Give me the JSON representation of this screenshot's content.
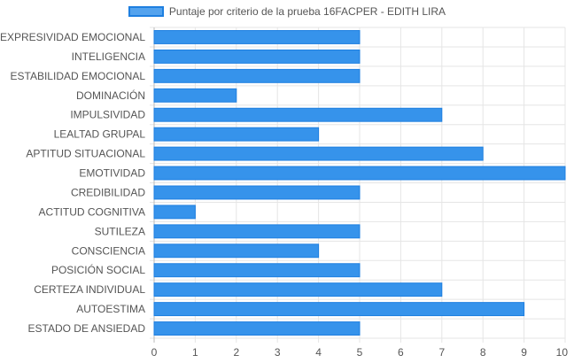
{
  "chart_data": {
    "type": "bar",
    "orientation": "horizontal",
    "legend": "top",
    "series": [
      {
        "name": "Puntaje por criterio de la prueba 16FACPER - EDITH LIRA",
        "color": "#3693eb",
        "border_color": "#1e7fe0",
        "values": [
          5,
          5,
          5,
          2,
          7,
          4,
          8,
          10,
          5,
          1,
          5,
          4,
          5,
          7,
          9,
          5
        ]
      }
    ],
    "categories": [
      "EXPRESIVIDAD EMOCIONAL",
      "INTELIGENCIA",
      "ESTABILIDAD EMOCIONAL",
      "DOMINACIÓN",
      "IMPULSIVIDAD",
      "LEALTAD GRUPAL",
      "APTITUD SITUACIONAL",
      "EMOTIVIDAD",
      "CREDIBILIDAD",
      "ACTITUD COGNITIVA",
      "SUTILEZA",
      "CONSCIENCIA",
      "POSICIÓN SOCIAL",
      "CERTEZA INDIVIDUAL",
      "AUTOESTIMA",
      "ESTADO DE ANSIEDAD"
    ],
    "xlim": [
      0,
      10
    ],
    "xticks": [
      "0",
      "1",
      "2",
      "3",
      "4",
      "5",
      "6",
      "7",
      "8",
      "9",
      "10"
    ],
    "grid": true
  }
}
